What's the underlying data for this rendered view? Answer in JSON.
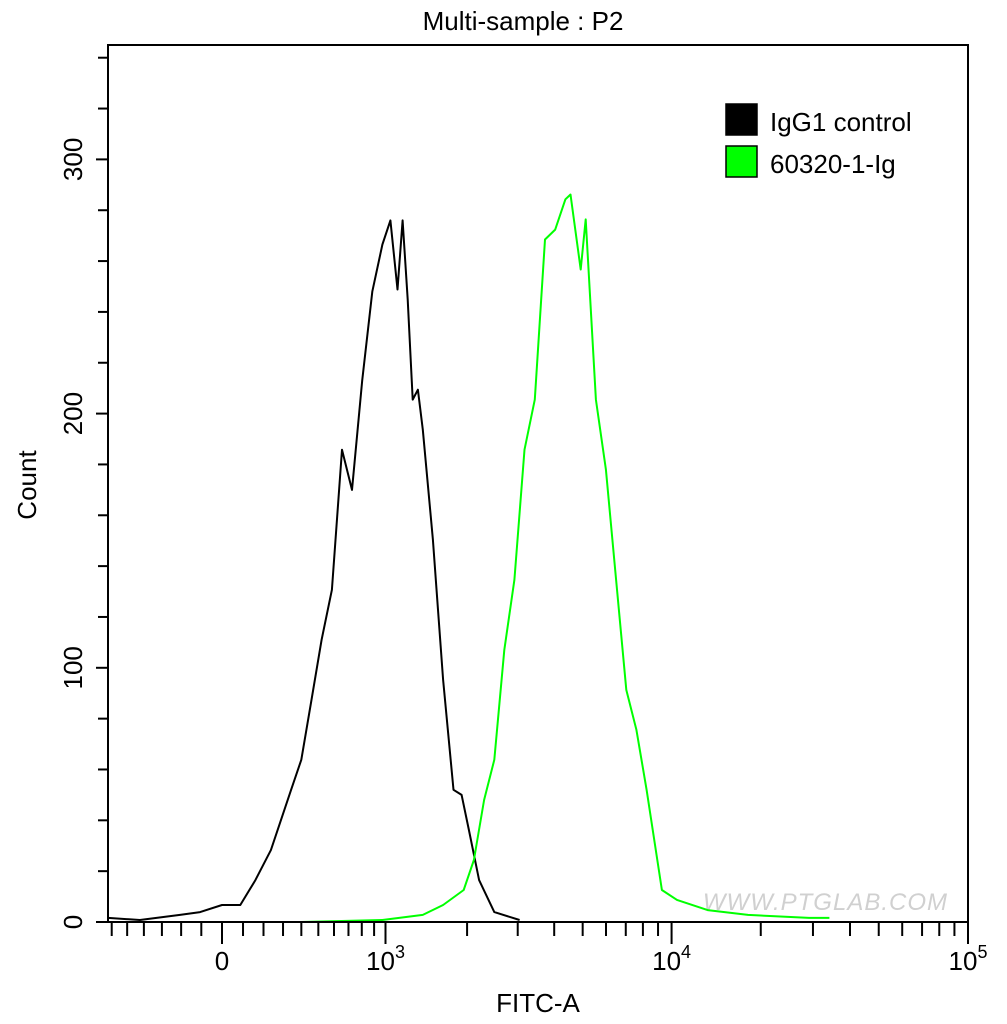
{
  "chart_data": {
    "type": "line",
    "title": "Multi-sample : P2",
    "xlabel": "FITC-A",
    "ylabel": "Count",
    "x_scale": "biexponential",
    "xlim": [
      -625,
      100000
    ],
    "ylim": [
      0,
      345
    ],
    "x_ticks": [
      {
        "value": 0,
        "base": "0",
        "exp": ""
      },
      {
        "value": 1000,
        "base": "10",
        "exp": "3"
      },
      {
        "value": 10000,
        "base": "10",
        "exp": "4"
      },
      {
        "value": 100000,
        "base": "10",
        "exp": "5"
      }
    ],
    "y_ticks": [
      0,
      100,
      200,
      300
    ],
    "grid": false,
    "legend_position": "top-right",
    "watermark": "WWW.PTGLAB.COM",
    "series": [
      {
        "name": "IgG1 control",
        "color": "#000000",
        "points": [
          [
            -625,
            1.6
          ],
          [
            -423,
            0.8
          ],
          [
            -206,
            2.8
          ],
          [
            -106,
            3.9
          ],
          [
            0,
            6.7
          ],
          [
            87,
            6.7
          ],
          [
            160,
            16.5
          ],
          [
            237,
            28.3
          ],
          [
            343,
            52
          ],
          [
            400,
            63.8
          ],
          [
            459,
            87.4
          ],
          [
            520,
            111
          ],
          [
            586,
            130.7
          ],
          [
            654,
            185.8
          ],
          [
            726,
            170
          ],
          [
            803,
            213
          ],
          [
            885,
            248
          ],
          [
            972,
            266.5
          ],
          [
            1045,
            276
          ],
          [
            1114,
            248.8
          ],
          [
            1165,
            276
          ],
          [
            1218,
            244.9
          ],
          [
            1272,
            205.5
          ],
          [
            1329,
            209.4
          ],
          [
            1386,
            193.7
          ],
          [
            1509,
            150.4
          ],
          [
            1575,
            122.8
          ],
          [
            1643,
            95.3
          ],
          [
            1790,
            52
          ],
          [
            1913,
            50
          ],
          [
            2029,
            36.2
          ],
          [
            2204,
            16.5
          ],
          [
            2489,
            3.9
          ],
          [
            3044,
            0.8
          ]
        ]
      },
      {
        "name": "60320-1-Ig",
        "color": "#00ff00",
        "points": [
          [
            400,
            0
          ],
          [
            972,
            0.8
          ],
          [
            1386,
            2.8
          ],
          [
            1643,
            6.7
          ],
          [
            1946,
            12.6
          ],
          [
            2114,
            24.4
          ],
          [
            2294,
            48
          ],
          [
            2489,
            63.8
          ],
          [
            2697,
            107
          ],
          [
            2923,
            134.6
          ],
          [
            3166,
            185.8
          ],
          [
            3434,
            205.5
          ],
          [
            3721,
            268.5
          ],
          [
            4032,
            272.4
          ],
          [
            4368,
            284.3
          ],
          [
            4545,
            286.2
          ],
          [
            4923,
            256.7
          ],
          [
            5118,
            276.4
          ],
          [
            5545,
            205.5
          ],
          [
            5996,
            178
          ],
          [
            6490,
            134.6
          ],
          [
            7027,
            91.3
          ],
          [
            7607,
            75.6
          ],
          [
            8235,
            52
          ],
          [
            9272,
            12.6
          ],
          [
            10431,
            8.7
          ],
          [
            13237,
            4.7
          ],
          [
            18117,
            2.8
          ],
          [
            29097,
            1.6
          ],
          [
            34099,
            1.6
          ]
        ]
      }
    ]
  }
}
